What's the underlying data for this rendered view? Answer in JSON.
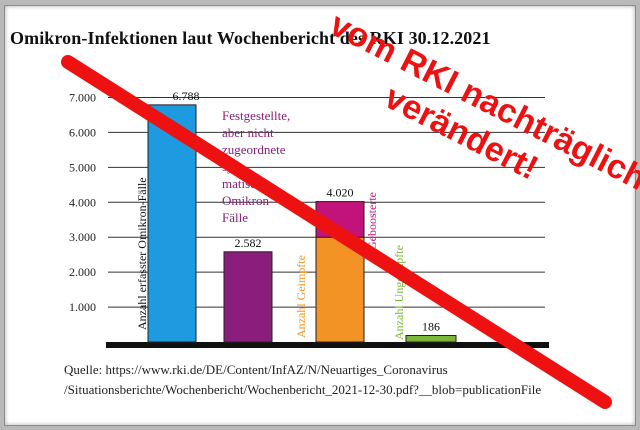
{
  "title": "Omikron-Infektionen laut Wochenbericht des RKI 30.12.2021",
  "source_line1": "Quelle: https://www.rki.de/DE/Content/InfAZ/N/Neuartiges_Coronavirus",
  "source_line2": "/Situationsberichte/Wochenbericht/Wochenbericht_2021-12-30.pdf?__blob=publicationFile",
  "stamp_line1": "vom RKI nachträglich",
  "stamp_line2": "verändert!",
  "chart_data": {
    "type": "bar",
    "ylim": [
      0,
      7500
    ],
    "yticks": [
      1000,
      2000,
      3000,
      4000,
      5000,
      6000,
      7000
    ],
    "ytick_labels": [
      "1.000",
      "2.000",
      "3.000",
      "4.000",
      "5.000",
      "6.000",
      "7.000"
    ],
    "grid": true,
    "bars": [
      {
        "value": 6788,
        "label": "6.788",
        "color": "#1e9be0",
        "annotation": "Anzahl erfasster Omikron-Fälle",
        "annotation_color": "#111111"
      },
      {
        "value": 2582,
        "label": "2.582",
        "color": "#8b1e7c",
        "annotation": "Festgestellte, aber nicht zugeordnete symptomatische Omikron-Fälle",
        "annotation_color": "#8b1e7c"
      },
      {
        "value": 4020,
        "label": "4.020",
        "segments": [
          {
            "name": "Anzahl Geimpfte",
            "value": 3000,
            "color": "#f39325"
          },
          {
            "name": "Geboosterte",
            "value": 1020,
            "color": "#c2137a"
          }
        ],
        "annotation": "Anzahl Geimpfte",
        "annotation_color": "#f39325"
      },
      {
        "value": 186,
        "label": "186",
        "color": "#7bb83a",
        "annotation": "Anzahl Ungeimpfte",
        "annotation_color": "#7bb83a"
      }
    ],
    "side_note_lines": [
      "Festgestellte,",
      "aber nicht",
      "zugeordnete",
      "sym-",
      "matische",
      "Omikron-",
      "Fälle"
    ],
    "side_note_color": "#8b1e7c",
    "boosted_label": "Geboosterte",
    "boosted_color": "#c2137a"
  },
  "colors": {
    "stamp": "#ee1111",
    "background": "#ffffff",
    "frame": "#b9b9b9"
  }
}
